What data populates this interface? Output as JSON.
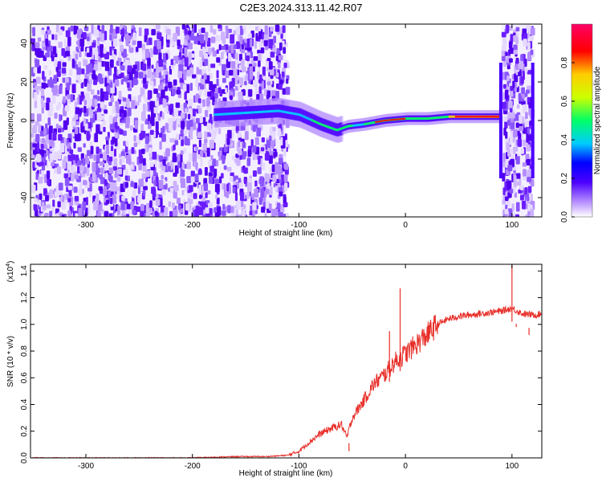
{
  "title": "C2E3.2024.313.11.42.R07",
  "chart_data": [
    {
      "type": "heatmap",
      "xlabel": "Height of straight line (km)",
      "ylabel": "Frequency (Hz)",
      "xlim": [
        -352,
        128
      ],
      "ylim": [
        -50,
        50
      ],
      "xticks": [
        -300,
        -200,
        -100,
        0,
        100
      ],
      "yticks": [
        -40,
        -20,
        0,
        20,
        40
      ],
      "grid": false,
      "colorbar": {
        "label": "Normalized spectral amplitude",
        "range": [
          0,
          1
        ],
        "ticks": [
          "0.0",
          "0.2",
          "0.4",
          "0.6",
          "0.8"
        ],
        "colors": [
          "#ffffff",
          "#b48cff",
          "#4b00ff",
          "#0000ff",
          "#00ccff",
          "#00ff66",
          "#ccff00",
          "#ffcc00",
          "#ff0000",
          "#ff0066"
        ]
      },
      "ridge": {
        "x": [
          -180,
          -150,
          -120,
          -100,
          -80,
          -65,
          -55,
          -40,
          -20,
          0,
          20,
          40,
          60,
          80,
          88
        ],
        "y": [
          3,
          4,
          5,
          3,
          -2,
          -5,
          -3,
          -2,
          0,
          1,
          1,
          2,
          2,
          2,
          2
        ]
      },
      "noise_extent_x": [
        -352,
        -112
      ],
      "noise_extent_x2": [
        90,
        118
      ]
    },
    {
      "type": "line",
      "xlabel": "Height of straight line (km)",
      "ylabel": "SNR (10 * v/v)",
      "y_multiplier_label": "(x10",
      "y_multiplier_exp": "4",
      "xlim": [
        -352,
        128
      ],
      "ylim": [
        0,
        1.45
      ],
      "xticks": [
        -300,
        -200,
        -100,
        0,
        100
      ],
      "yticks": [
        "0.0",
        "0.2",
        "0.4",
        "0.6",
        "0.8",
        "1.0",
        "1.2",
        "1.4"
      ],
      "grid": false,
      "color": "#e8302a",
      "series": [
        {
          "x": [
            -352,
            -300,
            -250,
            -200,
            -160,
            -130,
            -110,
            -100,
            -90,
            -80,
            -70,
            -60,
            -55,
            -50,
            -40,
            -30,
            -20,
            -10,
            0,
            10,
            20,
            30,
            40,
            50,
            60,
            70,
            80,
            90,
            100,
            110,
            120,
            128
          ],
          "y": [
            0.0,
            0.0,
            0.0,
            0.0,
            0.01,
            0.01,
            0.02,
            0.05,
            0.12,
            0.18,
            0.22,
            0.25,
            0.15,
            0.3,
            0.42,
            0.55,
            0.62,
            0.72,
            0.78,
            0.85,
            0.92,
            1.0,
            1.04,
            1.06,
            1.07,
            1.08,
            1.09,
            1.1,
            1.12,
            1.08,
            1.07,
            1.08
          ],
          "spikes": [
            {
              "x": -5,
              "y": 1.27
            },
            {
              "x": -15,
              "y": 0.95
            },
            {
              "x": -53,
              "y": 0.05
            },
            {
              "x": 100,
              "y": 1.45
            },
            {
              "x": 104,
              "y": 0.98
            },
            {
              "x": 116,
              "y": 0.92
            }
          ]
        }
      ]
    }
  ]
}
